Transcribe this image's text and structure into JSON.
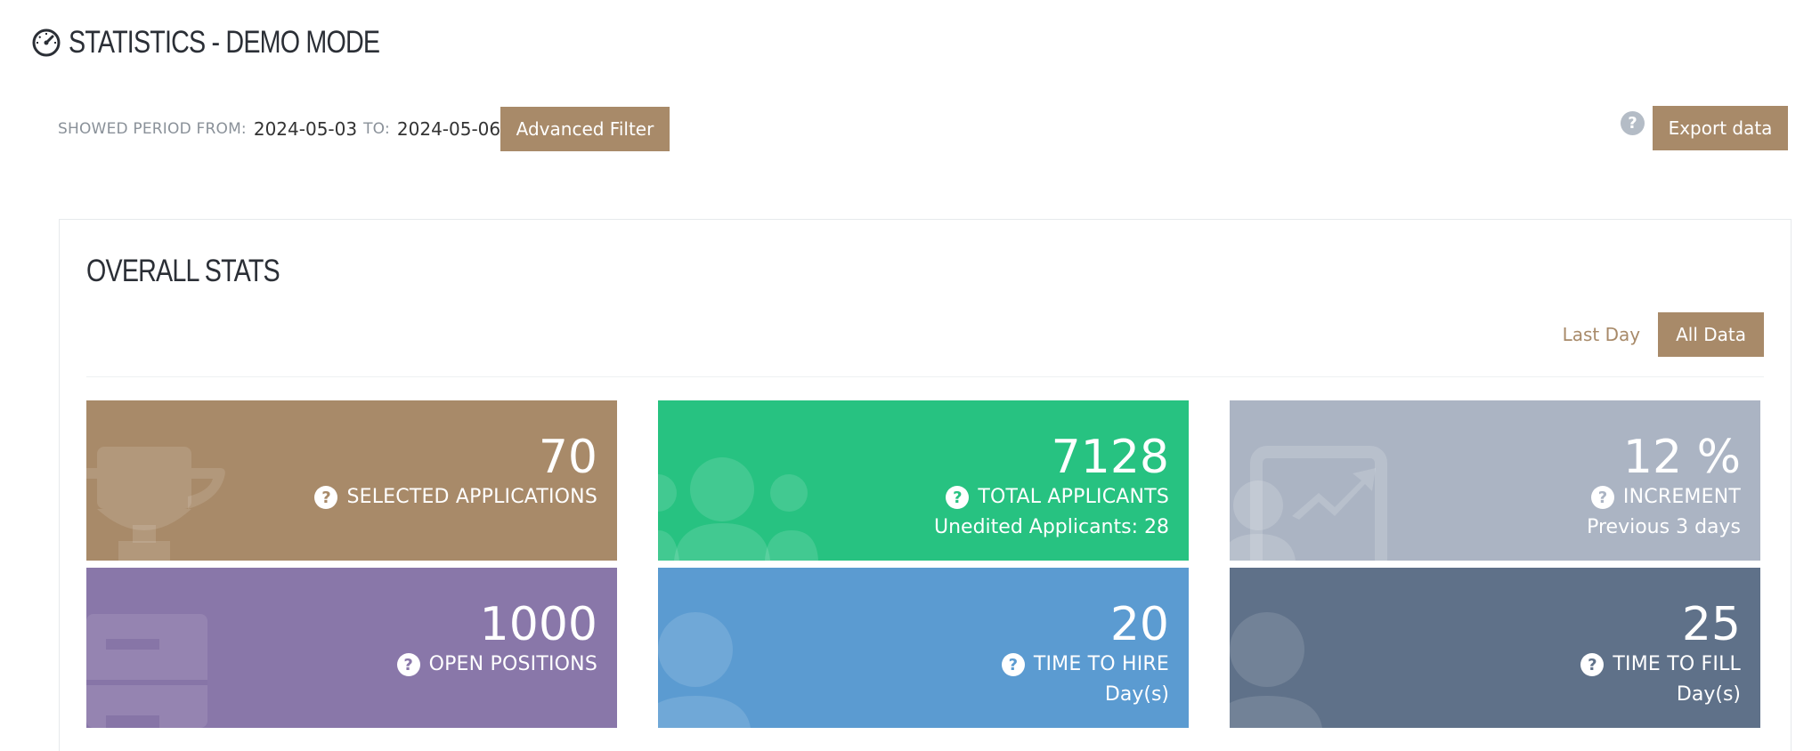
{
  "header": {
    "title": "STATISTICS - DEMO MODE",
    "icon": "speedometer-icon"
  },
  "filter": {
    "from_label": "SHOWED PERIOD FROM:",
    "from_value": "2024-05-03",
    "to_label": "TO:",
    "to_value": "2024-05-06",
    "advanced_filter_label": "Advanced Filter"
  },
  "toolbar": {
    "help_icon": "help-icon",
    "help_glyph": "?",
    "export_label": "Export data"
  },
  "overall": {
    "title": "OVERALL STATS",
    "toggles": [
      {
        "label": "Last Day",
        "active": false
      },
      {
        "label": "All Data",
        "active": true
      }
    ],
    "tiles": [
      {
        "value": "70",
        "label": "SELECTED APPLICATIONS",
        "sub": "",
        "color": "#a88a69",
        "icon": "trophy-icon"
      },
      {
        "value": "7128",
        "label": "TOTAL APPLICANTS",
        "sub": "Unedited Applicants: 28",
        "color": "#27c281",
        "icon": "users-group-icon"
      },
      {
        "value": "12 %",
        "label": "INCREMENT",
        "sub": "Previous 3 days",
        "color": "#abb4c3",
        "icon": "chart-growth-icon"
      },
      {
        "value": "1000",
        "label": "OPEN POSITIONS",
        "sub": "",
        "color": "#8977a9",
        "icon": "filing-cabinet-icon"
      },
      {
        "value": "20",
        "label": "TIME TO HIRE",
        "sub": "Day(s)",
        "color": "#5b9bd1",
        "icon": "user-icon"
      },
      {
        "value": "25",
        "label": "TIME TO FILL",
        "sub": "Day(s)",
        "color": "#5f7189",
        "icon": "user-icon"
      }
    ]
  }
}
